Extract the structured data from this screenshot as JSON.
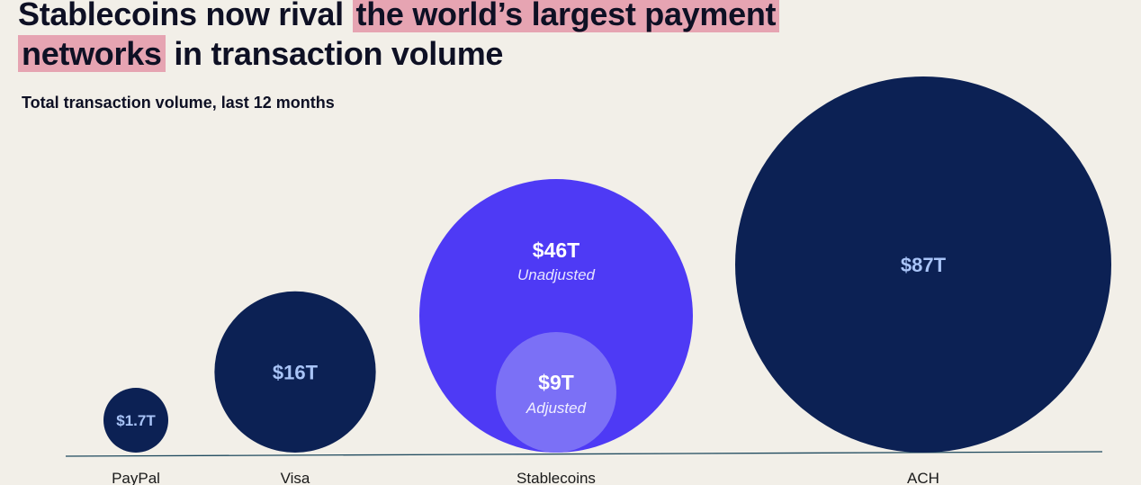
{
  "header": {
    "title_pre": "Stablecoins now rival ",
    "title_highlight_1": "the world’s largest payment",
    "title_highlight_2": "networks",
    "title_post": " in transaction volume",
    "subtitle": "Total transaction volume, last 12 months"
  },
  "colors": {
    "background": "#f2efe8",
    "highlight": "#e6a4b2",
    "navy": "#0c2154",
    "purple": "#4e3af5",
    "lavender": "#7b70f6",
    "label_on_navy": "#a9c4f7",
    "label_on_purple": "#ffffff"
  },
  "chart_data": {
    "type": "bubble",
    "title": "Total transaction volume, last 12 months",
    "unit": "trillions USD",
    "series": [
      {
        "category": "PayPal",
        "value": 1.7,
        "label": "$1.7T"
      },
      {
        "category": "Visa",
        "value": 16,
        "label": "$16T"
      },
      {
        "category": "Stablecoins",
        "value": 46,
        "label": "$46T",
        "sublabel": "Unadjusted",
        "inner": {
          "value": 9,
          "label": "$9T",
          "sublabel": "Adjusted"
        }
      },
      {
        "category": "ACH",
        "value": 87,
        "label": "$87T"
      }
    ]
  }
}
